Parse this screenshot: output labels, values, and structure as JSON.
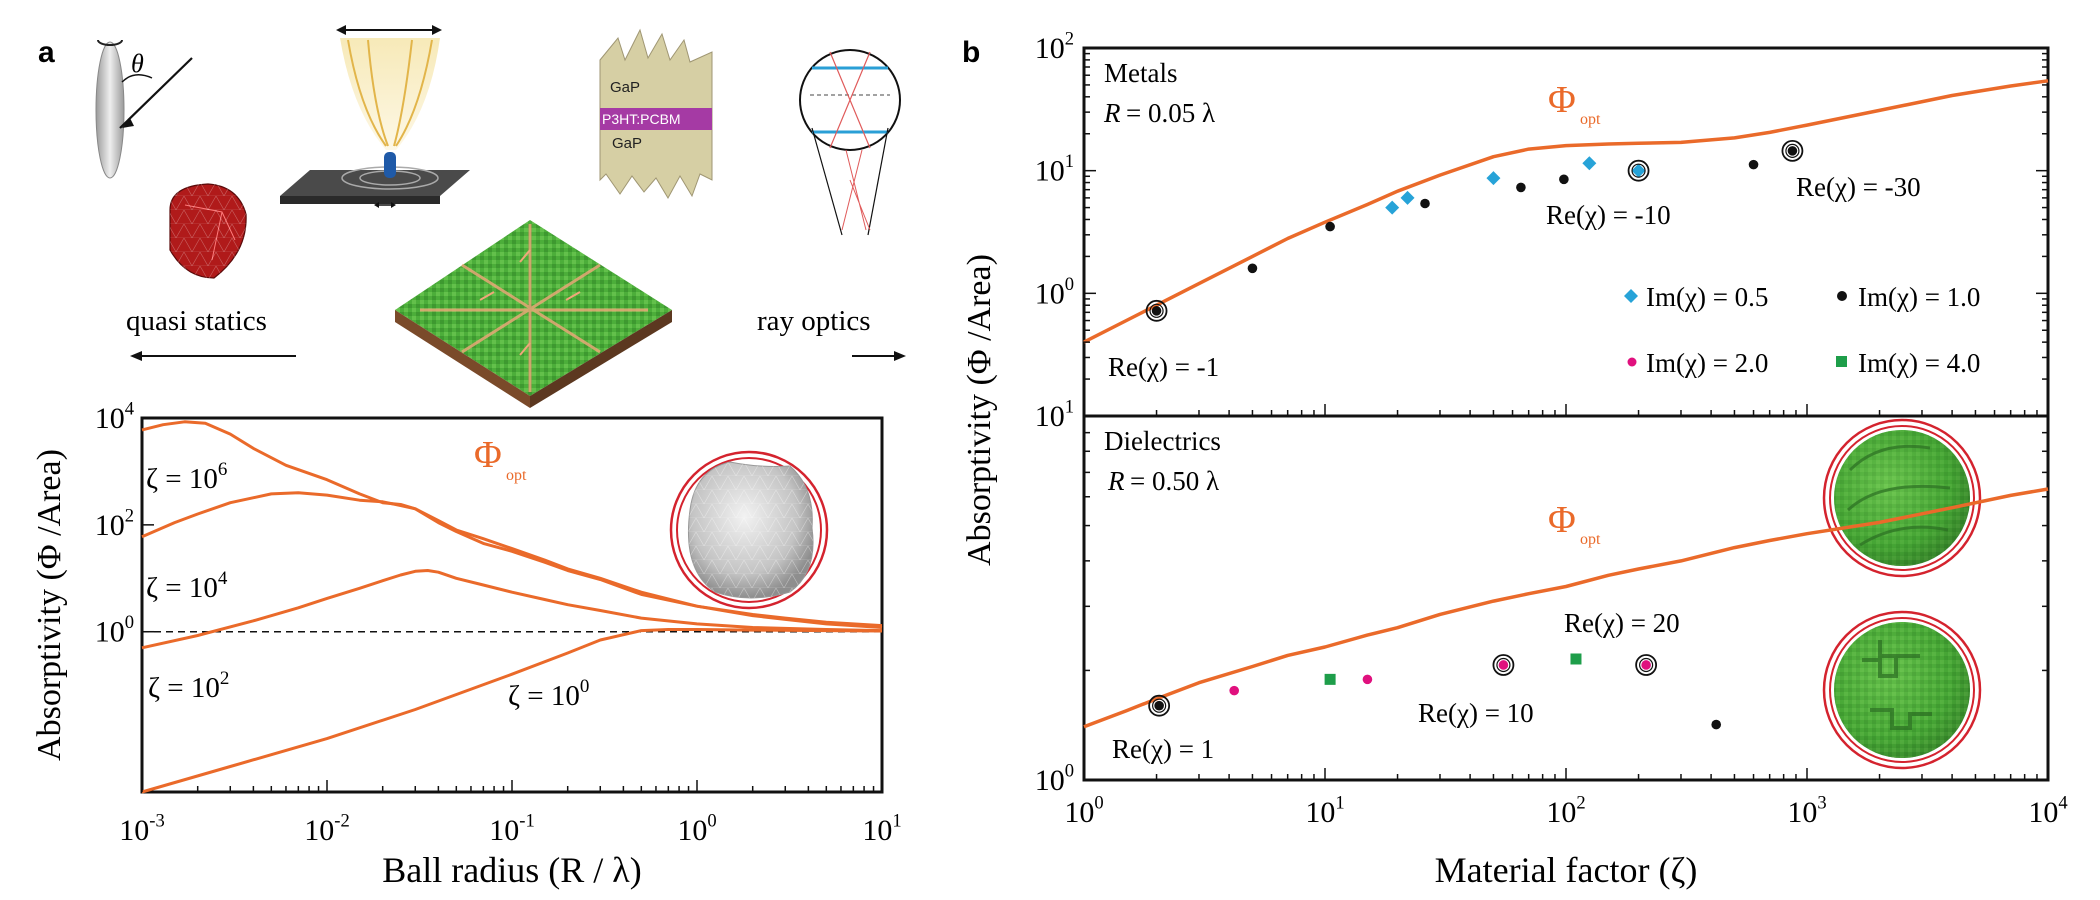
{
  "panel_a": {
    "letter": "a",
    "illustrations": {
      "theta_label": "θ",
      "gap_top": "GaP",
      "polymer_label": "P3HT:PCBM",
      "gap_bottom": "GaP",
      "quasi_statics_label": "quasi statics",
      "ray_optics_label": "ray optics"
    }
  },
  "panel_b": {
    "letter": "b",
    "top_title": "Metals",
    "top_radius_R": "R",
    "top_radius_value": "= 0.05 λ",
    "bottom_title": "Dielectrics",
    "bottom_radius_R": "R",
    "bottom_radius_value": "= 0.50 λ"
  },
  "colors": {
    "curve": "#ea6a2a",
    "metal_blue": "#27a3d8",
    "black": "#111111",
    "magenta": "#e0107e",
    "green": "#1e9e4a",
    "sphere_ring": "#d4232e",
    "sphere_green": "#4cae3a",
    "sphere_gray": "#c9c9c9"
  },
  "chart_data": [
    {
      "id": "a",
      "type": "line",
      "xscale": "log",
      "yscale": "log",
      "xlim": [
        0.001,
        10
      ],
      "ylim": [
        0.001,
        10000
      ],
      "xlabel": "Ball radius (R / λ)",
      "ylabel": "Absorptivity (Φ /Area)",
      "x_ticks": [
        {
          "value": 0.001,
          "base": "10",
          "exp": "-3"
        },
        {
          "value": 0.01,
          "base": "10",
          "exp": "-2"
        },
        {
          "value": 0.1,
          "base": "10",
          "exp": "-1"
        },
        {
          "value": 1,
          "base": "10",
          "exp": "0"
        },
        {
          "value": 10,
          "base": "10",
          "exp": "1"
        }
      ],
      "y_ticks": [
        {
          "value": 1,
          "base": "10",
          "exp": "0"
        },
        {
          "value": 100,
          "base": "10",
          "exp": "2"
        },
        {
          "value": 10000,
          "base": "10",
          "exp": "4"
        }
      ],
      "phi_label": "Φ",
      "phi_subscript": "opt",
      "reference_line": 1,
      "series": [
        {
          "name": "ζ = 10^6",
          "label_main": "ζ = 10",
          "label_exp": "6",
          "x": [
            0.001,
            0.0013,
            0.0017,
            0.0022,
            0.003,
            0.004,
            0.006,
            0.01,
            0.015,
            0.02,
            0.025,
            0.03,
            0.04,
            0.05,
            0.07,
            0.1,
            0.15,
            0.2,
            0.3,
            0.5,
            1,
            2,
            3,
            5,
            10
          ],
          "y": [
            6000,
            7500,
            8500,
            8000,
            5000,
            2700,
            1300,
            700,
            380,
            260,
            240,
            200,
            110,
            75,
            45,
            32,
            20,
            14,
            9.5,
            5,
            3,
            2.1,
            1.8,
            1.5,
            1.3
          ]
        },
        {
          "name": "ζ = 10^4",
          "label_main": "ζ  = 10",
          "label_exp": "4",
          "x": [
            0.001,
            0.0015,
            0.002,
            0.003,
            0.005,
            0.007,
            0.01,
            0.015,
            0.02,
            0.025,
            0.03,
            0.04,
            0.05,
            0.07,
            0.1,
            0.15,
            0.2,
            0.3,
            0.5,
            1,
            2,
            3,
            5,
            10
          ],
          "y": [
            60,
            110,
            160,
            260,
            380,
            400,
            360,
            290,
            270,
            230,
            200,
            120,
            80,
            55,
            36,
            22,
            15,
            10,
            5.5,
            3,
            2,
            1.7,
            1.4,
            1.2
          ]
        },
        {
          "name": "ζ = 10^2",
          "label_main": "ζ = 10",
          "label_exp": "2",
          "x": [
            0.001,
            0.002,
            0.004,
            0.007,
            0.01,
            0.015,
            0.02,
            0.025,
            0.03,
            0.035,
            0.04,
            0.05,
            0.07,
            0.1,
            0.15,
            0.2,
            0.3,
            0.5,
            1,
            2,
            5,
            10
          ],
          "y": [
            0.5,
            0.85,
            1.6,
            2.8,
            4.2,
            6.5,
            9,
            11.5,
            13.5,
            14,
            13,
            10,
            7.5,
            5.5,
            4,
            3.2,
            2.5,
            1.8,
            1.4,
            1.2,
            1.1,
            1.05
          ]
        },
        {
          "name": "ζ = 10^0",
          "label_main": "ζ  = 10",
          "label_exp": "0",
          "x": [
            0.001,
            0.003,
            0.01,
            0.03,
            0.1,
            0.2,
            0.3,
            0.5,
            0.7,
            1,
            2,
            5,
            10
          ],
          "y": [
            0.001,
            0.003,
            0.01,
            0.035,
            0.16,
            0.4,
            0.7,
            1.05,
            1.1,
            1.1,
            1.07,
            1.05,
            1.03
          ]
        }
      ]
    },
    {
      "id": "b-top",
      "type": "scatter",
      "xscale": "log",
      "yscale": "log",
      "xlim": [
        1,
        10000
      ],
      "ylim": [
        0.1,
        100
      ],
      "ylabel": "Absorptivity (Φ /Area)",
      "y_ticks": [
        {
          "value": 1,
          "base": "10",
          "exp": "0"
        },
        {
          "value": 10,
          "base": "10",
          "exp": "1"
        },
        {
          "value": 100,
          "base": "10",
          "exp": "2"
        }
      ],
      "phi_label": "Φ",
      "phi_subscript": "opt",
      "bound_curve": {
        "x": [
          1,
          1.5,
          2,
          3,
          5,
          7,
          10,
          15,
          20,
          30,
          50,
          70,
          100,
          150,
          200,
          300,
          500,
          700,
          1000,
          2000,
          4000,
          7000,
          10000
        ],
        "y": [
          0.4,
          0.6,
          0.8,
          1.2,
          2.0,
          2.8,
          3.8,
          5.3,
          6.8,
          9.2,
          13,
          15,
          16,
          16.5,
          16.7,
          17,
          18.5,
          20.5,
          23.5,
          31,
          41,
          49,
          54
        ]
      },
      "series": [
        {
          "name": "Im(χ) = 0.5",
          "marker": "diamond",
          "color": "#27a3d8",
          "x": [
            19,
            22,
            50,
            125,
            200
          ],
          "y": [
            5,
            6,
            8.7,
            11.5,
            10
          ]
        },
        {
          "name": "Im(χ) = 1.0",
          "marker": "circle",
          "color": "#111111",
          "x": [
            2,
            5,
            10.5,
            26,
            65,
            98,
            600,
            870
          ],
          "y": [
            0.72,
            1.6,
            3.5,
            5.4,
            7.3,
            8.5,
            11.2,
            14.5
          ]
        }
      ],
      "highlighted_points": [
        {
          "x": 2,
          "y": 0.72,
          "color": "#111111"
        },
        {
          "x": 200,
          "y": 10,
          "color": "#27a3d8"
        },
        {
          "x": 870,
          "y": 14.5,
          "color": "#111111"
        }
      ],
      "annotations": [
        {
          "text": "Re(χ) = -1"
        },
        {
          "text": "Re(χ) = -10"
        },
        {
          "text": "Re(χ) = -30"
        }
      ],
      "legend": [
        {
          "text": "Im(χ) = 0.5",
          "marker": "diamond",
          "color": "#27a3d8"
        },
        {
          "text": "Im(χ) = 1.0",
          "marker": "circle",
          "color": "#111111"
        },
        {
          "text": "Im(χ) = 2.0",
          "marker": "circle",
          "color": "#e0107e"
        },
        {
          "text": "Im(χ) = 4.0",
          "marker": "square",
          "color": "#1e9e4a"
        }
      ]
    },
    {
      "id": "b-bottom",
      "type": "scatter",
      "xscale": "log",
      "yscale": "log",
      "xlim": [
        1,
        10000
      ],
      "ylim": [
        1,
        10
      ],
      "xlabel": "Material factor (ζ)",
      "x_ticks": [
        {
          "value": 1,
          "base": "10",
          "exp": "0"
        },
        {
          "value": 10,
          "base": "10",
          "exp": "1"
        },
        {
          "value": 100,
          "base": "10",
          "exp": "2"
        },
        {
          "value": 1000,
          "base": "10",
          "exp": "3"
        },
        {
          "value": 10000,
          "base": "10",
          "exp": "4"
        }
      ],
      "y_ticks": [
        {
          "value": 1,
          "base": "10",
          "exp": "0"
        },
        {
          "value": 10,
          "base": "10",
          "exp": "1"
        }
      ],
      "phi_label": "Φ",
      "phi_subscript": "opt",
      "bound_curve": {
        "x": [
          1,
          1.5,
          2,
          3,
          5,
          7,
          10,
          15,
          20,
          30,
          50,
          70,
          100,
          150,
          200,
          300,
          500,
          700,
          1000,
          2000,
          4000,
          7000,
          10000
        ],
        "y": [
          1.4,
          1.55,
          1.67,
          1.85,
          2.05,
          2.2,
          2.32,
          2.5,
          2.62,
          2.85,
          3.1,
          3.25,
          3.4,
          3.65,
          3.8,
          4.0,
          4.35,
          4.55,
          4.75,
          5.1,
          5.6,
          6.05,
          6.3
        ]
      },
      "series": [
        {
          "name": "Im(χ) = 1.0",
          "marker": "circle",
          "color": "#111111",
          "x": [
            2.05,
            420
          ],
          "y": [
            1.6,
            1.42
          ]
        },
        {
          "name": "Im(χ) = 2.0",
          "marker": "circle",
          "color": "#e0107e",
          "x": [
            4.2,
            15,
            55,
            215
          ],
          "y": [
            1.76,
            1.89,
            2.07,
            2.07
          ]
        },
        {
          "name": "Im(χ) = 4.0",
          "marker": "square",
          "color": "#1e9e4a",
          "x": [
            10.5,
            110
          ],
          "y": [
            1.89,
            2.15
          ]
        }
      ],
      "highlighted_points": [
        {
          "x": 2.05,
          "y": 1.6,
          "color": "#111111"
        },
        {
          "x": 55,
          "y": 2.07,
          "color": "#e0107e"
        },
        {
          "x": 215,
          "y": 2.07,
          "color": "#e0107e"
        }
      ],
      "annotations": [
        {
          "text": "Re(χ) = 1"
        },
        {
          "text": "Re(χ) = 10"
        },
        {
          "text": "Re(χ) = 20"
        }
      ]
    }
  ]
}
